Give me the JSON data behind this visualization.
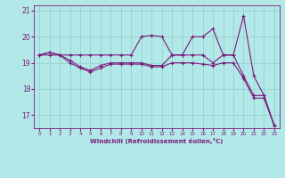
{
  "title": "",
  "xlabel": "Windchill (Refroidissement éolien,°C)",
  "bg_color": "#b2e8e8",
  "line_color": "#7b1a7b",
  "grid_color": "#8ecece",
  "x": [
    0,
    1,
    2,
    3,
    4,
    5,
    6,
    7,
    8,
    9,
    10,
    11,
    12,
    13,
    14,
    15,
    16,
    17,
    18,
    19,
    20,
    21,
    22,
    23
  ],
  "y_mean": [
    19.3,
    19.4,
    19.3,
    19.1,
    18.85,
    18.7,
    18.9,
    19.0,
    19.0,
    19.0,
    19.0,
    18.9,
    18.9,
    19.3,
    19.3,
    19.3,
    19.3,
    19.0,
    19.3,
    19.3,
    18.5,
    17.75,
    17.75,
    16.6
  ],
  "y_max": [
    19.3,
    19.4,
    19.3,
    19.3,
    19.3,
    19.3,
    19.3,
    19.3,
    19.3,
    19.3,
    20.0,
    20.05,
    20.0,
    19.3,
    19.3,
    20.0,
    20.0,
    20.3,
    19.3,
    19.3,
    20.8,
    18.5,
    17.75,
    16.6
  ],
  "y_min": [
    19.3,
    19.3,
    19.3,
    19.0,
    18.8,
    18.65,
    18.8,
    18.95,
    18.95,
    18.95,
    18.95,
    18.85,
    18.85,
    19.0,
    19.0,
    19.0,
    18.95,
    18.9,
    19.0,
    19.0,
    18.4,
    17.65,
    17.65,
    16.6
  ],
  "xlim": [
    -0.5,
    23.5
  ],
  "ylim": [
    16.5,
    21.2
  ],
  "yticks": [
    17,
    18,
    19,
    20,
    21
  ],
  "xticks": [
    0,
    1,
    2,
    3,
    4,
    5,
    6,
    7,
    8,
    9,
    10,
    11,
    12,
    13,
    14,
    15,
    16,
    17,
    18,
    19,
    20,
    21,
    22,
    23
  ],
  "figsize": [
    3.2,
    2.0
  ],
  "dpi": 100
}
